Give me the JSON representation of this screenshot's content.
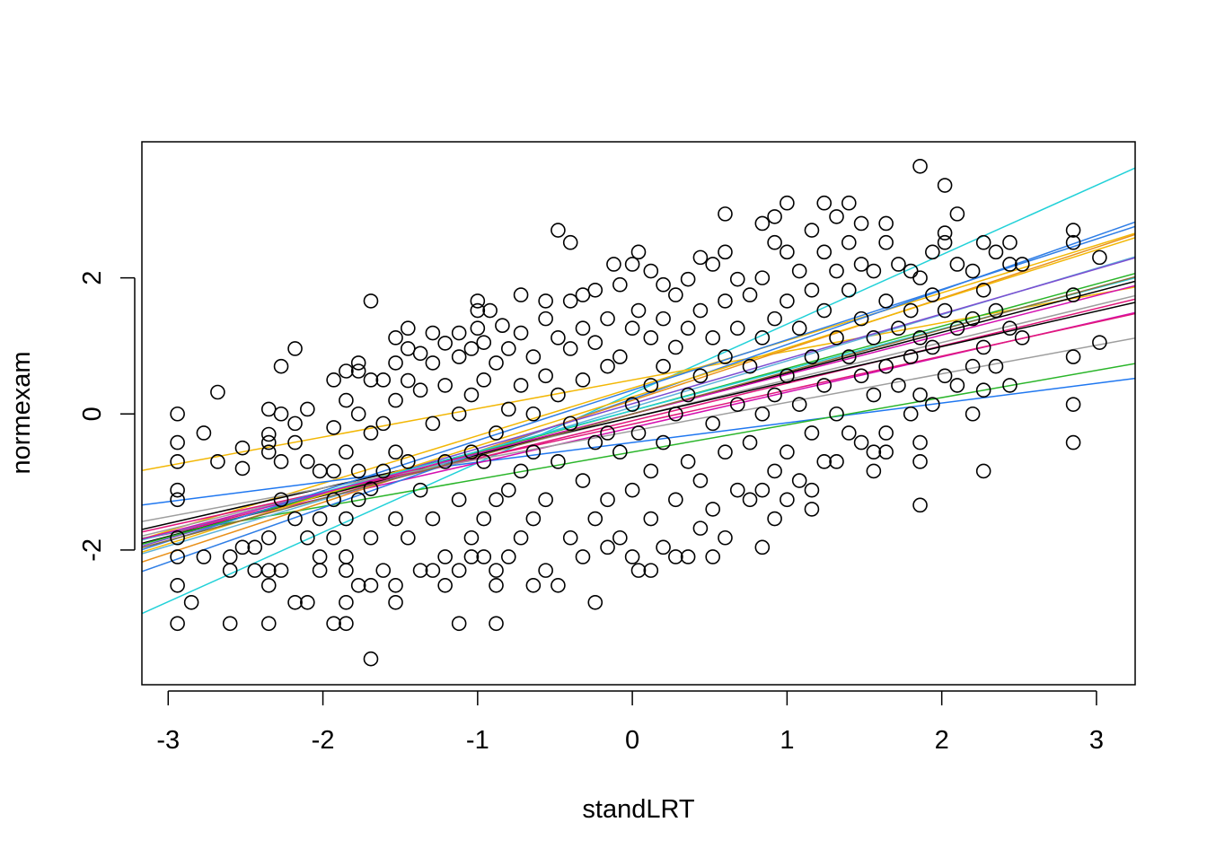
{
  "chart_data": {
    "type": "scatter",
    "title": "",
    "xlabel": "standLRT",
    "ylabel": "normexam",
    "xlim": [
      -3.17,
      3.25
    ],
    "ylim": [
      -3.98,
      4.0
    ],
    "xticks": [
      -3,
      -2,
      -1,
      0,
      1,
      2,
      3
    ],
    "xtick_labels": [
      "-3",
      "-2",
      "-1",
      "0",
      "1",
      "2",
      "3"
    ],
    "yticks": [
      -2,
      0,
      2
    ],
    "ytick_labels": [
      "-2",
      "0",
      "2"
    ],
    "grid": false,
    "legend": "none",
    "point_style": "open-circle",
    "point_color": "#000000",
    "sample_points": [
      [
        -2.94,
        0.0
      ],
      [
        -2.94,
        -0.42
      ],
      [
        -2.94,
        -0.7
      ],
      [
        -2.94,
        -1.12
      ],
      [
        -2.94,
        -1.26
      ],
      [
        -2.94,
        -1.82
      ],
      [
        -2.94,
        -2.1
      ],
      [
        -2.94,
        -2.52
      ],
      [
        -2.94,
        -3.08
      ],
      [
        -2.77,
        -0.28
      ],
      [
        -2.77,
        -2.1
      ],
      [
        -2.85,
        -2.77
      ],
      [
        -2.68,
        0.32
      ],
      [
        -2.68,
        -0.7
      ],
      [
        -2.6,
        -2.1
      ],
      [
        -2.6,
        -2.3
      ],
      [
        -2.6,
        -3.08
      ],
      [
        -2.52,
        -0.5
      ],
      [
        -2.52,
        -0.8
      ],
      [
        -2.52,
        -1.96
      ],
      [
        -2.44,
        -1.96
      ],
      [
        -2.44,
        -2.3
      ],
      [
        -2.35,
        0.07
      ],
      [
        -2.35,
        -0.3
      ],
      [
        -2.35,
        -0.42
      ],
      [
        -2.35,
        -0.56
      ],
      [
        -2.35,
        -1.82
      ],
      [
        -2.35,
        -2.3
      ],
      [
        -2.35,
        -2.52
      ],
      [
        -2.35,
        -3.08
      ],
      [
        -2.27,
        0.0
      ],
      [
        -2.27,
        0.7
      ],
      [
        -2.27,
        -0.7
      ],
      [
        -2.27,
        -1.26
      ],
      [
        -2.27,
        -2.3
      ],
      [
        -2.18,
        0.96
      ],
      [
        -2.18,
        -0.14
      ],
      [
        -2.18,
        -0.42
      ],
      [
        -2.18,
        -1.54
      ],
      [
        -2.18,
        -2.77
      ],
      [
        -2.1,
        0.07
      ],
      [
        -2.1,
        -0.7
      ],
      [
        -2.1,
        -1.82
      ],
      [
        -2.1,
        -2.77
      ],
      [
        -2.02,
        -0.84
      ],
      [
        -2.02,
        -1.54
      ],
      [
        -2.02,
        -2.1
      ],
      [
        -2.02,
        -2.3
      ],
      [
        -1.93,
        0.5
      ],
      [
        -1.93,
        -0.2
      ],
      [
        -1.93,
        -0.84
      ],
      [
        -1.93,
        -1.26
      ],
      [
        -1.93,
        -1.82
      ],
      [
        -1.93,
        -3.08
      ],
      [
        -1.85,
        0.2
      ],
      [
        -1.85,
        0.63
      ],
      [
        -1.85,
        -0.56
      ],
      [
        -1.85,
        -1.54
      ],
      [
        -1.85,
        -2.1
      ],
      [
        -1.85,
        -2.3
      ],
      [
        -1.85,
        -2.77
      ],
      [
        -1.85,
        -3.08
      ],
      [
        -1.77,
        0.63
      ],
      [
        -1.77,
        0.75
      ],
      [
        -1.77,
        0.0
      ],
      [
        -1.77,
        -0.84
      ],
      [
        -1.77,
        -1.26
      ],
      [
        -1.77,
        -2.52
      ],
      [
        -1.69,
        1.66
      ],
      [
        -1.69,
        0.5
      ],
      [
        -1.69,
        -0.28
      ],
      [
        -1.69,
        -1.1
      ],
      [
        -1.69,
        -1.82
      ],
      [
        -1.69,
        -2.52
      ],
      [
        -1.69,
        -3.6
      ],
      [
        -1.61,
        0.5
      ],
      [
        -1.61,
        -0.14
      ],
      [
        -1.61,
        -0.84
      ],
      [
        -1.61,
        -2.3
      ],
      [
        -1.53,
        1.12
      ],
      [
        -1.53,
        0.75
      ],
      [
        -1.53,
        0.2
      ],
      [
        -1.53,
        -0.56
      ],
      [
        -1.53,
        -1.54
      ],
      [
        -1.53,
        -2.52
      ],
      [
        -1.53,
        -2.77
      ],
      [
        -1.45,
        1.26
      ],
      [
        -1.45,
        0.96
      ],
      [
        -1.45,
        0.49
      ],
      [
        -1.45,
        -0.7
      ],
      [
        -1.45,
        -1.82
      ],
      [
        -1.37,
        0.89
      ],
      [
        -1.37,
        0.35
      ],
      [
        -1.37,
        -1.12
      ],
      [
        -1.37,
        -2.3
      ],
      [
        -1.29,
        1.19
      ],
      [
        -1.29,
        0.75
      ],
      [
        -1.29,
        -0.14
      ],
      [
        -1.29,
        -1.54
      ],
      [
        -1.29,
        -2.3
      ],
      [
        -1.21,
        1.04
      ],
      [
        -1.21,
        0.42
      ],
      [
        -1.21,
        -0.7
      ],
      [
        -1.21,
        -2.1
      ],
      [
        -1.21,
        -2.52
      ],
      [
        -1.12,
        1.19
      ],
      [
        -1.12,
        0.84
      ],
      [
        -1.12,
        0.0
      ],
      [
        -1.12,
        -1.26
      ],
      [
        -1.12,
        -2.3
      ],
      [
        -1.12,
        -3.08
      ],
      [
        -1.04,
        0.96
      ],
      [
        -1.04,
        0.28
      ],
      [
        -1.04,
        -0.56
      ],
      [
        -1.04,
        -1.82
      ],
      [
        -1.04,
        -2.1
      ],
      [
        -1.0,
        1.66
      ],
      [
        -1.0,
        1.52
      ],
      [
        -1.0,
        1.26
      ],
      [
        -0.96,
        1.05
      ],
      [
        -0.96,
        0.5
      ],
      [
        -0.96,
        -0.7
      ],
      [
        -0.96,
        -1.54
      ],
      [
        -0.96,
        -2.1
      ],
      [
        -0.92,
        1.52
      ],
      [
        -0.88,
        0.75
      ],
      [
        -0.88,
        -0.28
      ],
      [
        -0.88,
        -1.26
      ],
      [
        -0.88,
        -2.3
      ],
      [
        -0.88,
        -2.52
      ],
      [
        -0.88,
        -3.08
      ],
      [
        -0.84,
        1.3
      ],
      [
        -0.8,
        0.96
      ],
      [
        -0.8,
        0.07
      ],
      [
        -0.8,
        -1.12
      ],
      [
        -0.8,
        -2.1
      ],
      [
        -0.72,
        1.75
      ],
      [
        -0.72,
        1.19
      ],
      [
        -0.72,
        0.42
      ],
      [
        -0.72,
        -0.84
      ],
      [
        -0.72,
        -1.82
      ],
      [
        -0.64,
        0.84
      ],
      [
        -0.64,
        0.0
      ],
      [
        -0.64,
        -0.56
      ],
      [
        -0.64,
        -1.54
      ],
      [
        -0.64,
        -2.52
      ],
      [
        -0.56,
        1.66
      ],
      [
        -0.56,
        1.4
      ],
      [
        -0.56,
        0.56
      ],
      [
        -0.56,
        -1.26
      ],
      [
        -0.56,
        -2.3
      ],
      [
        -0.48,
        2.7
      ],
      [
        -0.48,
        1.12
      ],
      [
        -0.48,
        0.28
      ],
      [
        -0.48,
        -0.7
      ],
      [
        -0.48,
        -2.52
      ],
      [
        -0.4,
        2.52
      ],
      [
        -0.4,
        1.66
      ],
      [
        -0.4,
        0.96
      ],
      [
        -0.4,
        -0.14
      ],
      [
        -0.4,
        -1.82
      ],
      [
        -0.32,
        1.75
      ],
      [
        -0.32,
        1.26
      ],
      [
        -0.32,
        0.5
      ],
      [
        -0.32,
        -0.98
      ],
      [
        -0.32,
        -2.1
      ],
      [
        -0.24,
        1.82
      ],
      [
        -0.24,
        1.05
      ],
      [
        -0.24,
        -0.42
      ],
      [
        -0.24,
        -1.54
      ],
      [
        -0.24,
        -2.77
      ],
      [
        -0.16,
        1.4
      ],
      [
        -0.16,
        0.7
      ],
      [
        -0.16,
        -0.28
      ],
      [
        -0.16,
        -1.26
      ],
      [
        -0.16,
        -1.96
      ],
      [
        -0.12,
        2.2
      ],
      [
        -0.08,
        1.9
      ],
      [
        -0.08,
        0.84
      ],
      [
        -0.08,
        -0.56
      ],
      [
        -0.08,
        -1.82
      ],
      [
        0.0,
        2.2
      ],
      [
        0.0,
        1.26
      ],
      [
        0.0,
        0.14
      ],
      [
        0.0,
        -1.12
      ],
      [
        0.0,
        -2.1
      ],
      [
        0.04,
        2.38
      ],
      [
        0.04,
        1.52
      ],
      [
        0.04,
        -0.28
      ],
      [
        0.04,
        -2.3
      ],
      [
        0.12,
        2.1
      ],
      [
        0.12,
        1.12
      ],
      [
        0.12,
        0.42
      ],
      [
        0.12,
        -0.84
      ],
      [
        0.12,
        -1.54
      ],
      [
        0.12,
        -2.3
      ],
      [
        0.2,
        1.9
      ],
      [
        0.2,
        1.4
      ],
      [
        0.2,
        0.7
      ],
      [
        0.2,
        -0.42
      ],
      [
        0.2,
        -1.96
      ],
      [
        0.28,
        1.75
      ],
      [
        0.28,
        0.98
      ],
      [
        0.28,
        0.0
      ],
      [
        0.28,
        -1.26
      ],
      [
        0.28,
        -2.1
      ],
      [
        0.36,
        1.98
      ],
      [
        0.36,
        1.26
      ],
      [
        0.36,
        0.28
      ],
      [
        0.36,
        -0.7
      ],
      [
        0.36,
        -2.1
      ],
      [
        0.44,
        2.3
      ],
      [
        0.44,
        1.52
      ],
      [
        0.44,
        0.56
      ],
      [
        0.44,
        -0.98
      ],
      [
        0.44,
        -1.68
      ],
      [
        0.52,
        2.2
      ],
      [
        0.52,
        1.12
      ],
      [
        0.52,
        -0.14
      ],
      [
        0.52,
        -1.4
      ],
      [
        0.52,
        -2.1
      ],
      [
        0.6,
        2.94
      ],
      [
        0.6,
        2.38
      ],
      [
        0.6,
        1.66
      ],
      [
        0.6,
        0.84
      ],
      [
        0.6,
        -0.56
      ],
      [
        0.6,
        -1.82
      ],
      [
        0.68,
        1.98
      ],
      [
        0.68,
        1.26
      ],
      [
        0.68,
        0.14
      ],
      [
        0.68,
        -1.12
      ],
      [
        0.76,
        1.75
      ],
      [
        0.76,
        0.7
      ],
      [
        0.76,
        -0.42
      ],
      [
        0.76,
        -1.26
      ],
      [
        0.84,
        2.8
      ],
      [
        0.84,
        2.0
      ],
      [
        0.84,
        1.12
      ],
      [
        0.84,
        0.0
      ],
      [
        0.84,
        -1.12
      ],
      [
        0.84,
        -1.96
      ],
      [
        0.92,
        2.9
      ],
      [
        0.92,
        2.52
      ],
      [
        0.92,
        1.4
      ],
      [
        0.92,
        0.28
      ],
      [
        0.92,
        -0.84
      ],
      [
        0.92,
        -1.54
      ],
      [
        1.0,
        3.1
      ],
      [
        1.0,
        2.38
      ],
      [
        1.0,
        1.66
      ],
      [
        1.0,
        0.56
      ],
      [
        1.0,
        -0.56
      ],
      [
        1.0,
        -1.26
      ],
      [
        1.08,
        2.1
      ],
      [
        1.08,
        1.26
      ],
      [
        1.08,
        0.14
      ],
      [
        1.08,
        -0.98
      ],
      [
        1.16,
        2.7
      ],
      [
        1.16,
        1.82
      ],
      [
        1.16,
        0.84
      ],
      [
        1.16,
        -0.28
      ],
      [
        1.16,
        -1.12
      ],
      [
        1.16,
        -1.4
      ],
      [
        1.24,
        3.1
      ],
      [
        1.24,
        2.38
      ],
      [
        1.24,
        1.52
      ],
      [
        1.24,
        0.42
      ],
      [
        1.24,
        -0.7
      ],
      [
        1.32,
        2.9
      ],
      [
        1.32,
        2.1
      ],
      [
        1.32,
        1.12
      ],
      [
        1.32,
        0.0
      ],
      [
        1.32,
        -0.7
      ],
      [
        1.4,
        3.1
      ],
      [
        1.4,
        2.52
      ],
      [
        1.4,
        1.82
      ],
      [
        1.4,
        0.84
      ],
      [
        1.4,
        -0.28
      ],
      [
        1.48,
        2.8
      ],
      [
        1.48,
        2.2
      ],
      [
        1.48,
        1.4
      ],
      [
        1.48,
        0.56
      ],
      [
        1.48,
        -0.42
      ],
      [
        1.56,
        2.1
      ],
      [
        1.56,
        1.12
      ],
      [
        1.56,
        0.28
      ],
      [
        1.56,
        -0.56
      ],
      [
        1.56,
        -0.84
      ],
      [
        1.64,
        2.8
      ],
      [
        1.64,
        2.52
      ],
      [
        1.64,
        1.66
      ],
      [
        1.64,
        0.7
      ],
      [
        1.64,
        -0.28
      ],
      [
        1.64,
        -0.56
      ],
      [
        1.72,
        2.2
      ],
      [
        1.72,
        1.26
      ],
      [
        1.72,
        0.42
      ],
      [
        1.8,
        2.1
      ],
      [
        1.8,
        1.52
      ],
      [
        1.8,
        0.84
      ],
      [
        1.8,
        0.0
      ],
      [
        1.86,
        3.64
      ],
      [
        1.86,
        2.0
      ],
      [
        1.86,
        1.12
      ],
      [
        1.86,
        0.28
      ],
      [
        1.86,
        -0.42
      ],
      [
        1.86,
        -0.7
      ],
      [
        1.86,
        -1.34
      ],
      [
        1.94,
        2.38
      ],
      [
        1.94,
        1.75
      ],
      [
        1.94,
        0.98
      ],
      [
        1.94,
        0.14
      ],
      [
        2.02,
        3.36
      ],
      [
        2.02,
        2.52
      ],
      [
        2.02,
        2.66
      ],
      [
        2.02,
        1.52
      ],
      [
        2.02,
        0.56
      ],
      [
        2.1,
        2.94
      ],
      [
        2.1,
        2.2
      ],
      [
        2.1,
        1.26
      ],
      [
        2.1,
        0.42
      ],
      [
        2.2,
        2.1
      ],
      [
        2.2,
        1.4
      ],
      [
        2.2,
        0.7
      ],
      [
        2.2,
        0.0
      ],
      [
        2.27,
        2.52
      ],
      [
        2.27,
        1.82
      ],
      [
        2.27,
        0.98
      ],
      [
        2.27,
        0.35
      ],
      [
        2.27,
        -0.84
      ],
      [
        2.35,
        2.38
      ],
      [
        2.35,
        1.52
      ],
      [
        2.35,
        0.7
      ],
      [
        2.44,
        2.52
      ],
      [
        2.44,
        2.2
      ],
      [
        2.44,
        1.26
      ],
      [
        2.44,
        0.42
      ],
      [
        2.52,
        2.2
      ],
      [
        2.52,
        1.12
      ],
      [
        2.85,
        2.7
      ],
      [
        2.85,
        2.52
      ],
      [
        2.85,
        1.75
      ],
      [
        2.85,
        0.84
      ],
      [
        2.85,
        0.14
      ],
      [
        2.85,
        -0.42
      ],
      [
        3.02,
        2.3
      ],
      [
        3.02,
        1.05
      ]
    ],
    "fit_lines": [
      {
        "color": "#22d1d8",
        "intercept": 0.3,
        "slope": 1.02
      },
      {
        "color": "#f2b705",
        "intercept": 0.5,
        "slope": 0.42
      },
      {
        "color": "#f2b705",
        "intercept": 0.38,
        "slope": 0.7
      },
      {
        "color": "#1f77f0",
        "intercept": -0.42,
        "slope": 0.29
      },
      {
        "color": "#2ab52a",
        "intercept": -0.56,
        "slope": 0.4
      },
      {
        "color": "#d40fb0",
        "intercept": -0.2,
        "slope": 0.52
      },
      {
        "color": "#e0177b",
        "intercept": -0.1,
        "slope": 0.55
      },
      {
        "color": "#9e9e9e",
        "intercept": -0.05,
        "slope": 0.55
      },
      {
        "color": "#000000",
        "intercept": 0.0,
        "slope": 0.6
      },
      {
        "color": "#000000",
        "intercept": -0.05,
        "slope": 0.52
      },
      {
        "color": "#2f7ee6",
        "intercept": 0.22,
        "slope": 0.8
      },
      {
        "color": "#e8901a",
        "intercept": 0.2,
        "slope": 0.75
      },
      {
        "color": "#5fb3d9",
        "intercept": 0.1,
        "slope": 0.68
      },
      {
        "color": "#7c4dd1",
        "intercept": 0.15,
        "slope": 0.66
      },
      {
        "color": "#2ab52a",
        "intercept": 0.05,
        "slope": 0.62
      },
      {
        "color": "#e0177b",
        "intercept": -0.15,
        "slope": 0.5
      },
      {
        "color": "#f2b705",
        "intercept": 0.25,
        "slope": 0.72
      },
      {
        "color": "#22d1d8",
        "intercept": 0.05,
        "slope": 0.6
      },
      {
        "color": "#9e9e9e",
        "intercept": -0.25,
        "slope": 0.42
      },
      {
        "color": "#d40fb0",
        "intercept": 0.0,
        "slope": 0.58
      },
      {
        "color": "#2f7ee6",
        "intercept": 0.35,
        "slope": 0.74
      },
      {
        "color": "#8b6b3a",
        "intercept": 0.0,
        "slope": 0.62
      }
    ]
  }
}
